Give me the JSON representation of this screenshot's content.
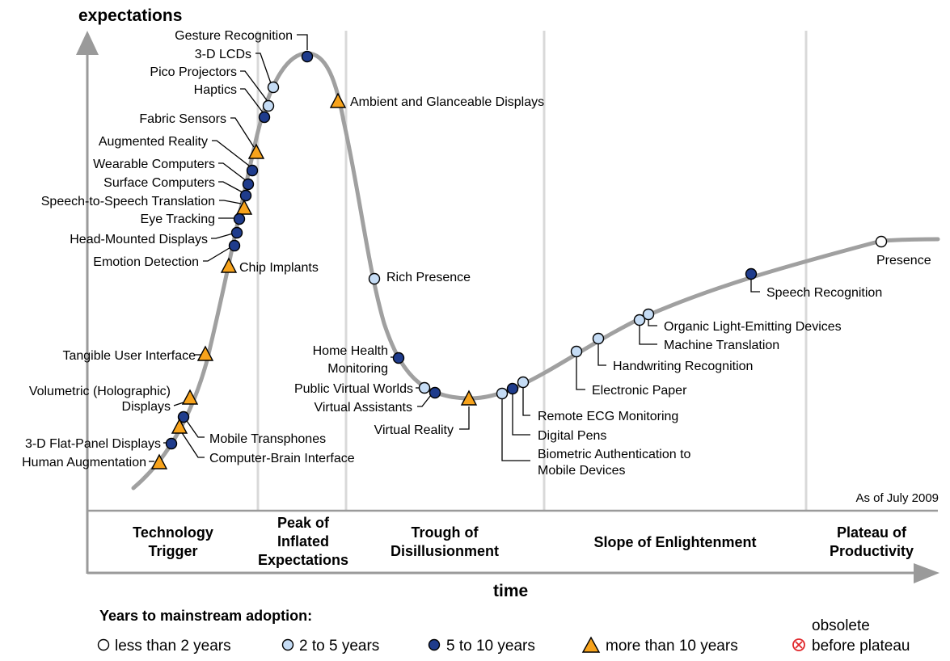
{
  "labels": {
    "y_axis": "expectations",
    "x_axis": "time",
    "as_of": "As of July 2009"
  },
  "phases": [
    {
      "id": "technology-trigger",
      "lines": [
        "Technology",
        "Trigger"
      ]
    },
    {
      "id": "peak",
      "lines": [
        "Peak of",
        "Inflated",
        "Expectations"
      ]
    },
    {
      "id": "trough",
      "lines": [
        "Trough of",
        "Disillusionment"
      ]
    },
    {
      "id": "slope",
      "lines": [
        "Slope of Enlightenment"
      ]
    },
    {
      "id": "plateau",
      "lines": [
        "Plateau of",
        "Productivity"
      ]
    }
  ],
  "legend": {
    "title": "Years to mainstream adoption:",
    "items": [
      {
        "marker": "white-circle",
        "lines": [
          "less than 2 years"
        ]
      },
      {
        "marker": "light-blue-circle",
        "lines": [
          "2 to 5 years"
        ]
      },
      {
        "marker": "dark-blue-circle",
        "lines": [
          "5 to 10 years"
        ]
      },
      {
        "marker": "orange-triangle",
        "lines": [
          "more than 10 years"
        ]
      },
      {
        "marker": "red-x-circle",
        "lines": [
          "obsolete",
          "before plateau"
        ]
      }
    ]
  },
  "technologies": [
    {
      "id": "gesture-recognition",
      "lines": [
        "Gesture Recognition"
      ],
      "category": "5 to 10 years"
    },
    {
      "id": "3d-lcds",
      "lines": [
        "3-D LCDs"
      ],
      "category": "2 to 5 years"
    },
    {
      "id": "pico-projectors",
      "lines": [
        "Pico Projectors"
      ],
      "category": "2 to 5 years"
    },
    {
      "id": "haptics",
      "lines": [
        "Haptics"
      ],
      "category": "5 to 10 years"
    },
    {
      "id": "fabric-sensors",
      "lines": [
        "Fabric Sensors"
      ],
      "category": "more than 10 years"
    },
    {
      "id": "augmented-reality",
      "lines": [
        "Augmented Reality"
      ],
      "category": "5 to 10 years"
    },
    {
      "id": "wearable-computers",
      "lines": [
        "Wearable Computers"
      ],
      "category": "5 to 10 years"
    },
    {
      "id": "surface-computers",
      "lines": [
        "Surface Computers"
      ],
      "category": "5 to 10 years"
    },
    {
      "id": "speech-to-speech-translation",
      "lines": [
        "Speech-to-Speech Translation"
      ],
      "category": "more than 10 years"
    },
    {
      "id": "eye-tracking",
      "lines": [
        "Eye Tracking"
      ],
      "category": "5 to 10 years"
    },
    {
      "id": "head-mounted-displays",
      "lines": [
        "Head-Mounted Displays"
      ],
      "category": "5 to 10 years"
    },
    {
      "id": "emotion-detection",
      "lines": [
        "Emotion Detection"
      ],
      "category": "5 to 10 years"
    },
    {
      "id": "chip-implants",
      "lines": [
        "Chip Implants"
      ],
      "category": "more than 10 years"
    },
    {
      "id": "ambient-and-glanceable-displays",
      "lines": [
        "Ambient and Glanceable Displays"
      ],
      "category": "more than 10 years"
    },
    {
      "id": "rich-presence",
      "lines": [
        "Rich Presence"
      ],
      "category": "2 to 5 years"
    },
    {
      "id": "tangible-user-interface",
      "lines": [
        "Tangible User Interface"
      ],
      "category": "more than 10 years"
    },
    {
      "id": "volumetric-holographic-displays",
      "lines": [
        "Volumetric (Holographic)",
        "Displays"
      ],
      "category": "more than 10 years"
    },
    {
      "id": "mobile-transphones",
      "lines": [
        "Mobile Transphones"
      ],
      "category": "5 to 10 years"
    },
    {
      "id": "3d-flat-panel-displays",
      "lines": [
        "3-D Flat-Panel Displays"
      ],
      "category": "5 to 10 years"
    },
    {
      "id": "computer-brain-interface",
      "lines": [
        "Computer-Brain Interface"
      ],
      "category": "more than 10 years"
    },
    {
      "id": "human-augmentation",
      "lines": [
        "Human Augmentation"
      ],
      "category": "more than 10 years"
    },
    {
      "id": "home-health-monitoring",
      "lines": [
        "Home Health",
        "Monitoring"
      ],
      "category": "5 to 10 years"
    },
    {
      "id": "public-virtual-worlds",
      "lines": [
        "Public Virtual Worlds"
      ],
      "category": "2 to 5 years"
    },
    {
      "id": "virtual-assistants",
      "lines": [
        "Virtual Assistants"
      ],
      "category": "5 to 10 years"
    },
    {
      "id": "virtual-reality",
      "lines": [
        "Virtual Reality"
      ],
      "category": "more than 10 years"
    },
    {
      "id": "biometric-authentication",
      "lines": [
        "Biometric Authentication to",
        "Mobile Devices"
      ],
      "category": "2 to 5 years"
    },
    {
      "id": "digital-pens",
      "lines": [
        "Digital Pens"
      ],
      "category": "5 to 10 years"
    },
    {
      "id": "remote-ecg-monitoring",
      "lines": [
        "Remote ECG Monitoring"
      ],
      "category": "2 to 5 years"
    },
    {
      "id": "electronic-paper",
      "lines": [
        "Electronic Paper"
      ],
      "category": "2 to 5 years"
    },
    {
      "id": "handwriting-recognition",
      "lines": [
        "Handwriting Recognition"
      ],
      "category": "2 to 5 years"
    },
    {
      "id": "machine-translation",
      "lines": [
        "Machine Translation"
      ],
      "category": "2 to 5 years"
    },
    {
      "id": "organic-light-emitting-devices",
      "lines": [
        "Organic Light-Emitting Devices"
      ],
      "category": "2 to 5 years"
    },
    {
      "id": "speech-recognition",
      "lines": [
        "Speech Recognition"
      ],
      "category": "5 to 10 years"
    },
    {
      "id": "presence",
      "lines": [
        "Presence"
      ],
      "category": "less than 2 years"
    }
  ],
  "colors": {
    "curve": "#a0a0a0",
    "axis": "#9a9a9a",
    "phase_divider": "#d9d9d9",
    "less_than_2_years": "#ffffff",
    "two_to_5_years": "#c5dcf5",
    "five_to_10_years": "#1f3c8c",
    "more_than_10_years": "#f7a31c",
    "obsolete": "#e0262a"
  }
}
